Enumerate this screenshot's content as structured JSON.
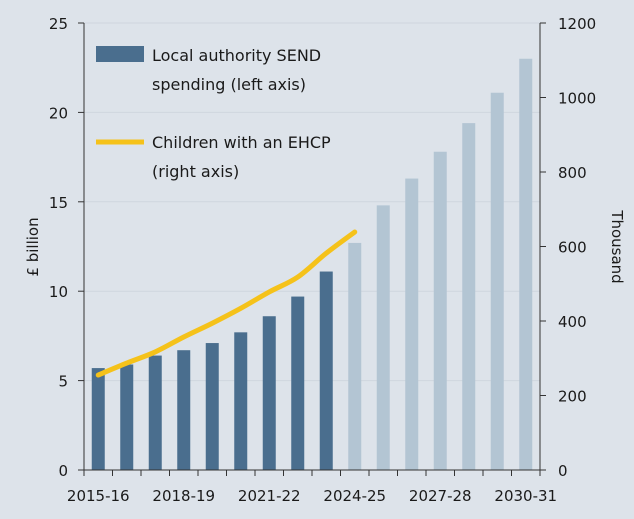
{
  "chart_data": {
    "type": "bar",
    "categories": [
      "2015-16",
      "2016-17",
      "2017-18",
      "2018-19",
      "2019-20",
      "2020-21",
      "2021-22",
      "2022-23",
      "2023-24",
      "2024-25",
      "2025-26",
      "2026-27",
      "2027-28",
      "2028-29",
      "2029-30",
      "2030-31"
    ],
    "x_tick_labels": [
      "2015-16",
      "2018-19",
      "2021-22",
      "2024-25",
      "2027-28",
      "2030-31"
    ],
    "series": [
      {
        "name": "Local authority SEND spending (left axis)",
        "legend_lines": [
          "Local authority SEND",
          "spending (left axis)"
        ],
        "type": "bar",
        "axis": "left",
        "values": [
          5.7,
          5.9,
          6.4,
          6.7,
          7.1,
          7.7,
          8.6,
          9.7,
          11.1,
          12.7,
          14.8,
          16.3,
          17.8,
          19.4,
          21.1,
          23.0
        ],
        "projected_from": "2024-25",
        "color": "#4a6e8e",
        "projected_color": "#b3c5d3"
      },
      {
        "name": "Children with an EHCP (right axis)",
        "legend_lines": [
          "Children with an EHCP",
          "(right axis)"
        ],
        "type": "line",
        "axis": "right",
        "values": [
          255,
          287,
          317,
          357,
          394,
          434,
          478,
          518,
          582,
          639,
          null,
          null,
          null,
          null,
          null,
          null
        ],
        "color": "#f5c21a"
      }
    ],
    "ylabel": "£ billion",
    "ylim": [
      0,
      25
    ],
    "yticks": [
      0,
      5,
      10,
      15,
      20,
      25
    ],
    "y2label": "Thousand",
    "y2lim": [
      0,
      1200
    ],
    "y2ticks": [
      0,
      200,
      400,
      600,
      800,
      1000,
      1200
    ],
    "grid": true,
    "legend_position": "top-left"
  }
}
